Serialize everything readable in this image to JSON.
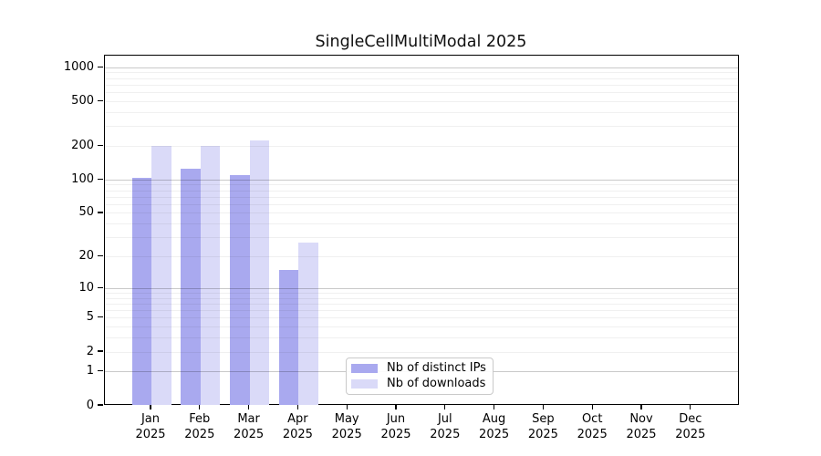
{
  "chart_data": {
    "type": "bar",
    "title": "SingleCellMultiModal 2025",
    "year_label": "2025",
    "categories": [
      "Jan",
      "Feb",
      "Mar",
      "Apr",
      "May",
      "Jun",
      "Jul",
      "Aug",
      "Sep",
      "Oct",
      "Nov",
      "Dec"
    ],
    "series": [
      {
        "name": "Nb of distinct IPs",
        "color": "#a9a9ef",
        "values": [
          105,
          125,
          110,
          15,
          null,
          null,
          null,
          null,
          null,
          null,
          null,
          null
        ]
      },
      {
        "name": "Nb of downloads",
        "color": "#dadaf8",
        "values": [
          200,
          200,
          225,
          27,
          null,
          null,
          null,
          null,
          null,
          null,
          null,
          null
        ]
      }
    ],
    "yscale": "log1p",
    "yticks": [
      0,
      1,
      2,
      5,
      10,
      20,
      50,
      100,
      200,
      500,
      1000
    ],
    "ylim": [
      0,
      1290
    ],
    "grid": "horizontal, log minors, darker decade lines",
    "legend_position": "bottom center inside plot"
  }
}
